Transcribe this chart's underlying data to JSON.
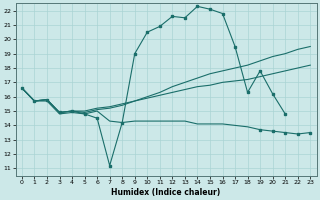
{
  "xlabel": "Humidex (Indice chaleur)",
  "bg_color": "#cce8e8",
  "grid_color": "#aad4d4",
  "line_color": "#1a6e6a",
  "xlim": [
    -0.5,
    23.5
  ],
  "ylim": [
    10.5,
    22.5
  ],
  "xticks": [
    0,
    1,
    2,
    3,
    4,
    5,
    6,
    7,
    8,
    9,
    10,
    11,
    12,
    13,
    14,
    15,
    16,
    17,
    18,
    19,
    20,
    21,
    22,
    23
  ],
  "yticks": [
    11,
    12,
    13,
    14,
    15,
    16,
    17,
    18,
    19,
    20,
    21,
    22
  ],
  "curve1_x": [
    0,
    1,
    2,
    3,
    4,
    5,
    6,
    7,
    8,
    9,
    10,
    11,
    12,
    13,
    14,
    15,
    16,
    17,
    18,
    19,
    20,
    21
  ],
  "curve1_y": [
    16.6,
    15.7,
    15.8,
    14.9,
    15.0,
    14.8,
    14.5,
    11.2,
    14.2,
    19.0,
    20.5,
    20.9,
    21.6,
    21.5,
    22.3,
    22.1,
    21.8,
    19.5,
    16.3,
    17.8,
    16.2,
    14.8
  ],
  "curve2_x": [
    0,
    1,
    2,
    3,
    4,
    5,
    6,
    7,
    8,
    9,
    10,
    11,
    12,
    13,
    14,
    15,
    16,
    17,
    18,
    19,
    20,
    21,
    22,
    23
  ],
  "curve2_y": [
    16.6,
    15.7,
    15.8,
    14.9,
    15.0,
    14.9,
    15.1,
    15.2,
    15.4,
    15.7,
    16.0,
    16.3,
    16.7,
    17.0,
    17.3,
    17.6,
    17.8,
    18.0,
    18.2,
    18.5,
    18.8,
    19.0,
    19.3,
    19.5
  ],
  "curve3_x": [
    0,
    1,
    2,
    3,
    4,
    5,
    6,
    7,
    8,
    9,
    10,
    11,
    12,
    13,
    14,
    15,
    16,
    17,
    18,
    19,
    20,
    21,
    22,
    23
  ],
  "curve3_y": [
    16.6,
    15.7,
    15.8,
    14.9,
    15.0,
    15.0,
    15.2,
    15.3,
    15.5,
    15.7,
    15.9,
    16.1,
    16.3,
    16.5,
    16.7,
    16.8,
    17.0,
    17.1,
    17.2,
    17.4,
    17.6,
    17.8,
    18.0,
    18.2
  ],
  "curve4_x": [
    0,
    1,
    2,
    3,
    4,
    5,
    6,
    7,
    8,
    9,
    10,
    11,
    12,
    13,
    14,
    15,
    16,
    17,
    18,
    19,
    20,
    21,
    22,
    23
  ],
  "curve4_y": [
    16.6,
    15.7,
    15.7,
    14.8,
    14.9,
    14.8,
    15.0,
    14.3,
    14.2,
    14.3,
    14.3,
    14.3,
    14.3,
    14.3,
    14.1,
    14.1,
    14.1,
    14.0,
    13.9,
    13.7,
    13.6,
    13.5,
    13.4,
    13.5
  ]
}
